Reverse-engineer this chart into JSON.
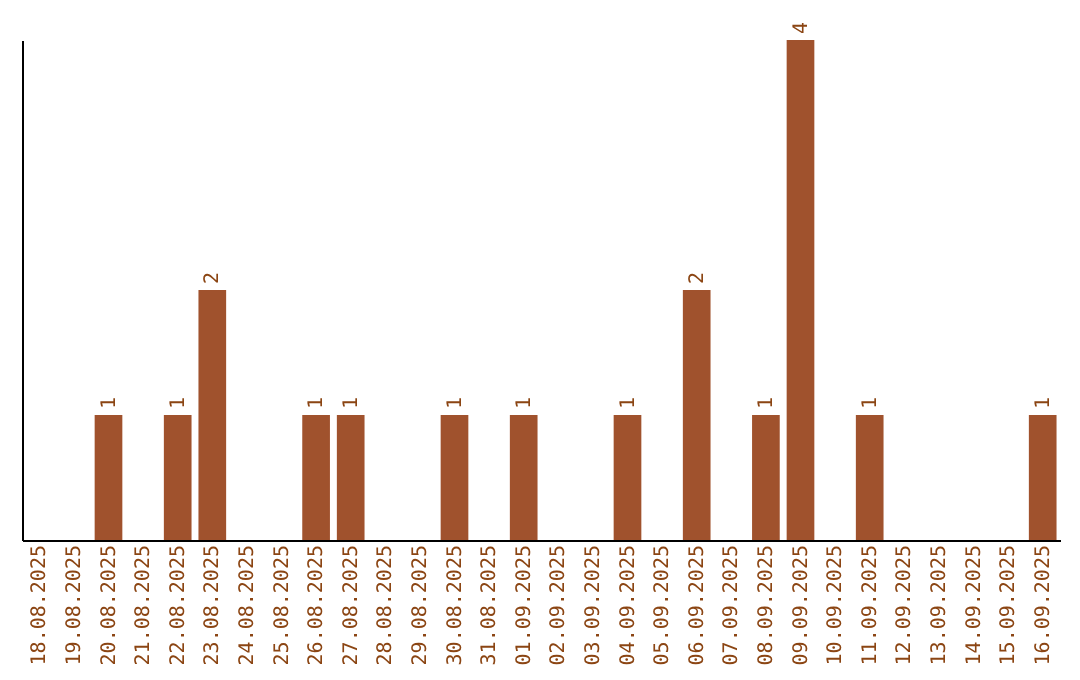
{
  "chart_data": {
    "type": "bar",
    "categories": [
      "18.08.2025",
      "19.08.2025",
      "20.08.2025",
      "21.08.2025",
      "22.08.2025",
      "23.08.2025",
      "24.08.2025",
      "25.08.2025",
      "26.08.2025",
      "27.08.2025",
      "28.08.2025",
      "29.08.2025",
      "30.08.2025",
      "31.08.2025",
      "01.09.2025",
      "02.09.2025",
      "03.09.2025",
      "04.09.2025",
      "05.09.2025",
      "06.09.2025",
      "07.09.2025",
      "08.09.2025",
      "09.09.2025",
      "10.09.2025",
      "11.09.2025",
      "12.09.2025",
      "13.09.2025",
      "14.09.2025",
      "15.09.2025",
      "16.09.2025"
    ],
    "values": [
      0,
      0,
      1,
      0,
      1,
      2,
      0,
      0,
      1,
      1,
      0,
      0,
      1,
      0,
      1,
      0,
      0,
      1,
      0,
      2,
      0,
      1,
      4,
      0,
      1,
      0,
      0,
      0,
      0,
      1
    ],
    "value_labels": [
      null,
      null,
      "1",
      null,
      "1",
      "2",
      null,
      null,
      "1",
      "1",
      null,
      null,
      "1",
      null,
      "1",
      null,
      null,
      "1",
      null,
      "2",
      null,
      "1",
      "4",
      null,
      "1",
      null,
      null,
      null,
      null,
      "1"
    ],
    "color": "#a0522d",
    "tick_labels": "x",
    "grid": false
  }
}
